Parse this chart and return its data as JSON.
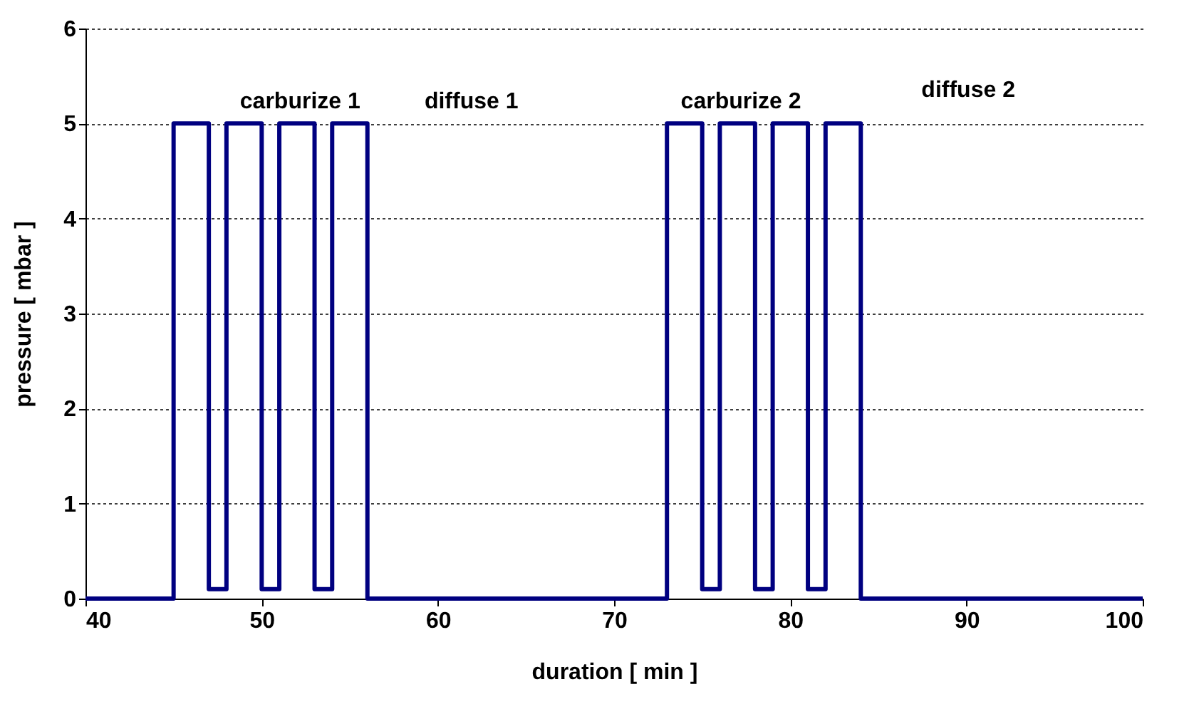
{
  "chart_data": {
    "type": "step",
    "xlabel": "duration [ min ]",
    "ylabel": "pressure [ mbar ]",
    "x": [
      40,
      45,
      47,
      48,
      50,
      51,
      53,
      54,
      56,
      73,
      75,
      76,
      78,
      79,
      81,
      82,
      84,
      100
    ],
    "series": [
      {
        "color": "#000080",
        "values": [
          0,
          5,
          0.1,
          5,
          0.1,
          5,
          0.1,
          5,
          0,
          5,
          0.1,
          5,
          0.1,
          5,
          0.1,
          5,
          0,
          0
        ]
      }
    ],
    "xlim": [
      40,
      100
    ],
    "xticks": [
      40,
      50,
      60,
      70,
      80,
      90,
      100
    ],
    "ylim": [
      0,
      6
    ],
    "yticks": [
      0,
      1,
      2,
      3,
      4,
      5,
      6
    ],
    "grid": "y",
    "line_style": "solid",
    "marker": "none",
    "annotations": [
      "carburize 1",
      "diffuse 1",
      "carburize 2",
      "diffuse 2"
    ]
  }
}
